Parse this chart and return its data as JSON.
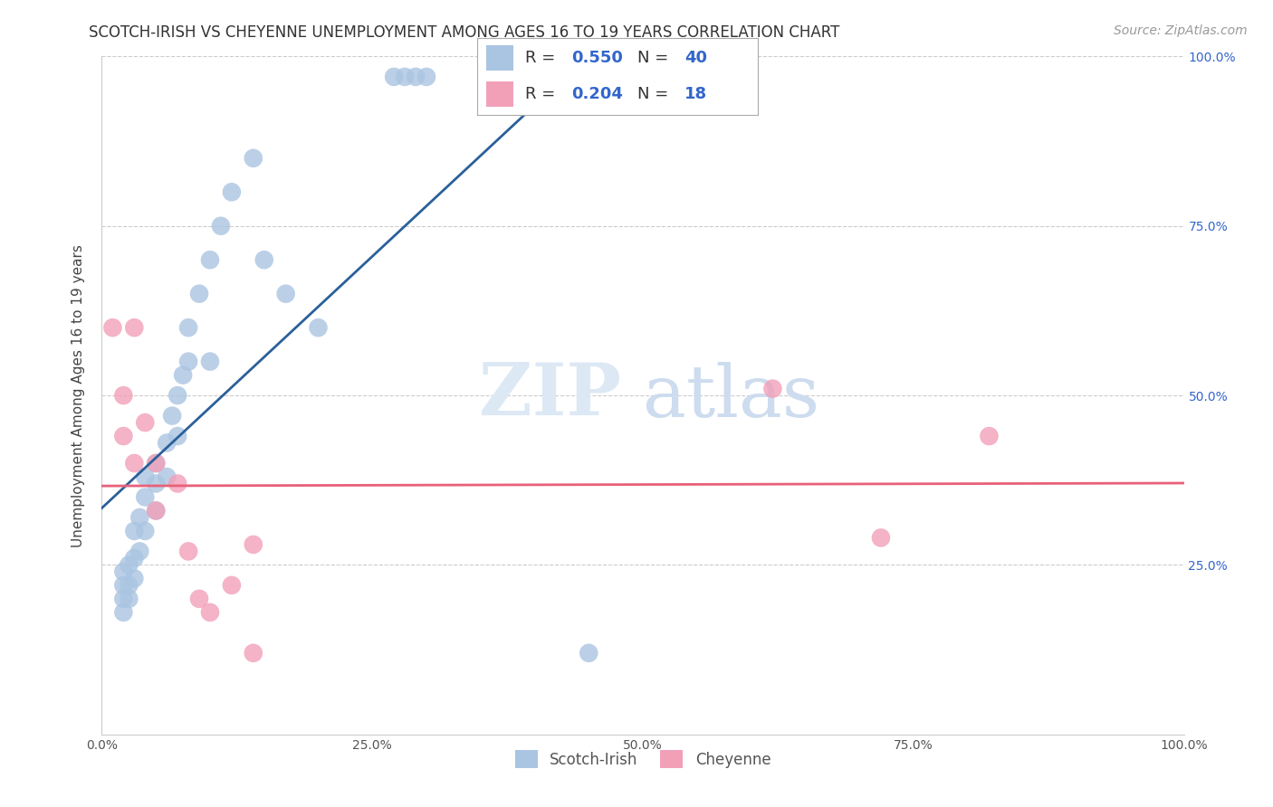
{
  "title": "SCOTCH-IRISH VS CHEYENNE UNEMPLOYMENT AMONG AGES 16 TO 19 YEARS CORRELATION CHART",
  "source": "Source: ZipAtlas.com",
  "ylabel": "Unemployment Among Ages 16 to 19 years",
  "xlim": [
    0.0,
    1.0
  ],
  "ylim": [
    0.0,
    1.0
  ],
  "xticks": [
    0.0,
    0.25,
    0.5,
    0.75,
    1.0
  ],
  "xtick_labels": [
    "0.0%",
    "25.0%",
    "50.0%",
    "75.0%",
    "100.0%"
  ],
  "yticks": [
    0.25,
    0.5,
    0.75,
    1.0
  ],
  "ytick_labels_left": [
    "25.0%",
    "50.0%",
    "75.0%",
    "100.0%"
  ],
  "ytick_labels_right": [
    "25.0%",
    "50.0%",
    "75.0%",
    "100.0%"
  ],
  "scotch_irish_R": 0.55,
  "scotch_irish_N": 40,
  "cheyenne_R": 0.204,
  "cheyenne_N": 18,
  "scotch_irish_color": "#aac5e2",
  "scotch_irish_line_color": "#2a6099",
  "cheyenne_color": "#f2a0b8",
  "cheyenne_line_color": "#e8607a",
  "background_color": "#ffffff",
  "grid_color": "#cccccc",
  "scotch_irish_x": [
    0.02,
    0.02,
    0.02,
    0.02,
    0.025,
    0.025,
    0.025,
    0.03,
    0.03,
    0.03,
    0.035,
    0.035,
    0.04,
    0.04,
    0.04,
    0.05,
    0.05,
    0.05,
    0.06,
    0.06,
    0.065,
    0.07,
    0.07,
    0.075,
    0.08,
    0.08,
    0.09,
    0.1,
    0.1,
    0.11,
    0.12,
    0.14,
    0.15,
    0.17,
    0.2,
    0.27,
    0.28,
    0.29,
    0.3,
    0.45
  ],
  "scotch_irish_y": [
    0.18,
    0.2,
    0.22,
    0.24,
    0.2,
    0.22,
    0.25,
    0.23,
    0.26,
    0.3,
    0.27,
    0.32,
    0.3,
    0.35,
    0.38,
    0.33,
    0.37,
    0.4,
    0.38,
    0.43,
    0.47,
    0.44,
    0.5,
    0.53,
    0.55,
    0.6,
    0.65,
    0.55,
    0.7,
    0.75,
    0.8,
    0.85,
    0.7,
    0.65,
    0.6,
    0.97,
    0.97,
    0.97,
    0.97,
    0.12
  ],
  "cheyenne_x": [
    0.01,
    0.02,
    0.02,
    0.03,
    0.03,
    0.04,
    0.05,
    0.05,
    0.07,
    0.08,
    0.09,
    0.1,
    0.12,
    0.14,
    0.62,
    0.72,
    0.82,
    0.14
  ],
  "cheyenne_y": [
    0.6,
    0.5,
    0.44,
    0.4,
    0.6,
    0.46,
    0.33,
    0.4,
    0.37,
    0.27,
    0.2,
    0.18,
    0.22,
    0.12,
    0.51,
    0.29,
    0.44,
    0.28
  ],
  "title_fontsize": 12,
  "axis_label_fontsize": 11,
  "tick_fontsize": 10,
  "source_fontsize": 10
}
